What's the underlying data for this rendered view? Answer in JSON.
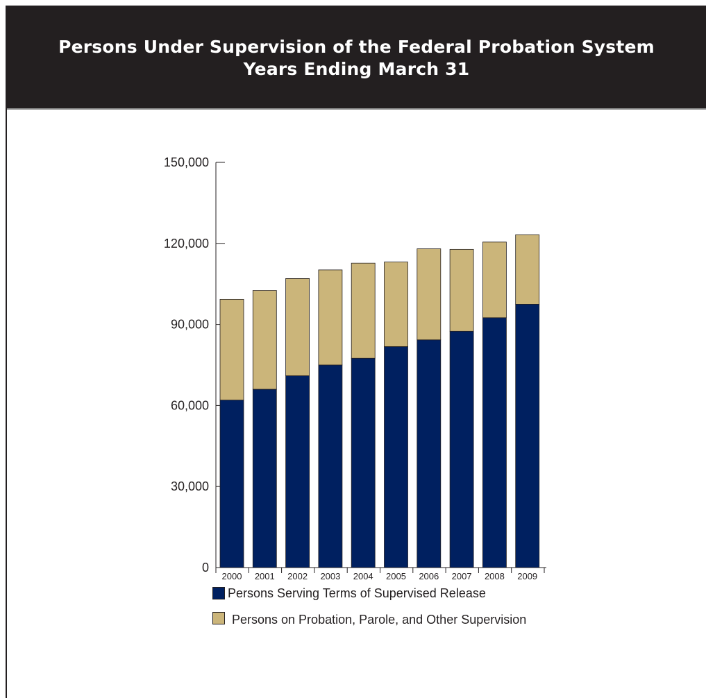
{
  "chart_data": {
    "type": "bar",
    "stacked": true,
    "title": "Persons Under Supervision of the Federal Probation System",
    "subtitle": "Years Ending March 31",
    "xlabel": "",
    "ylabel": "",
    "categories": [
      "2000",
      "2001",
      "2002",
      "2003",
      "2004",
      "2005",
      "2006",
      "2007",
      "2008",
      "2009"
    ],
    "series": [
      {
        "name": "Persons Serving Terms of Supervised Release",
        "color": "#002060",
        "values": [
          62000,
          66000,
          71000,
          75000,
          77500,
          81800,
          84300,
          87500,
          92500,
          97500
        ]
      },
      {
        "name": "Persons on Probation, Parole, and Other Supervision",
        "color": "#cbb57a",
        "values": [
          37300,
          36600,
          36000,
          35200,
          35200,
          31300,
          33700,
          30300,
          28000,
          25700
        ]
      }
    ],
    "ylim": [
      0,
      150000
    ],
    "yticks": [
      "0",
      "30,000",
      "60,000",
      "90,000",
      "120,000",
      "150,000"
    ],
    "ytick_values": [
      0,
      30000,
      60000,
      90000,
      120000,
      150000
    ],
    "grid": false,
    "legend_position": "bottom"
  },
  "colors": {
    "header_bg": "#231f20",
    "header_text": "#ffffff",
    "axis": "#231f20"
  }
}
